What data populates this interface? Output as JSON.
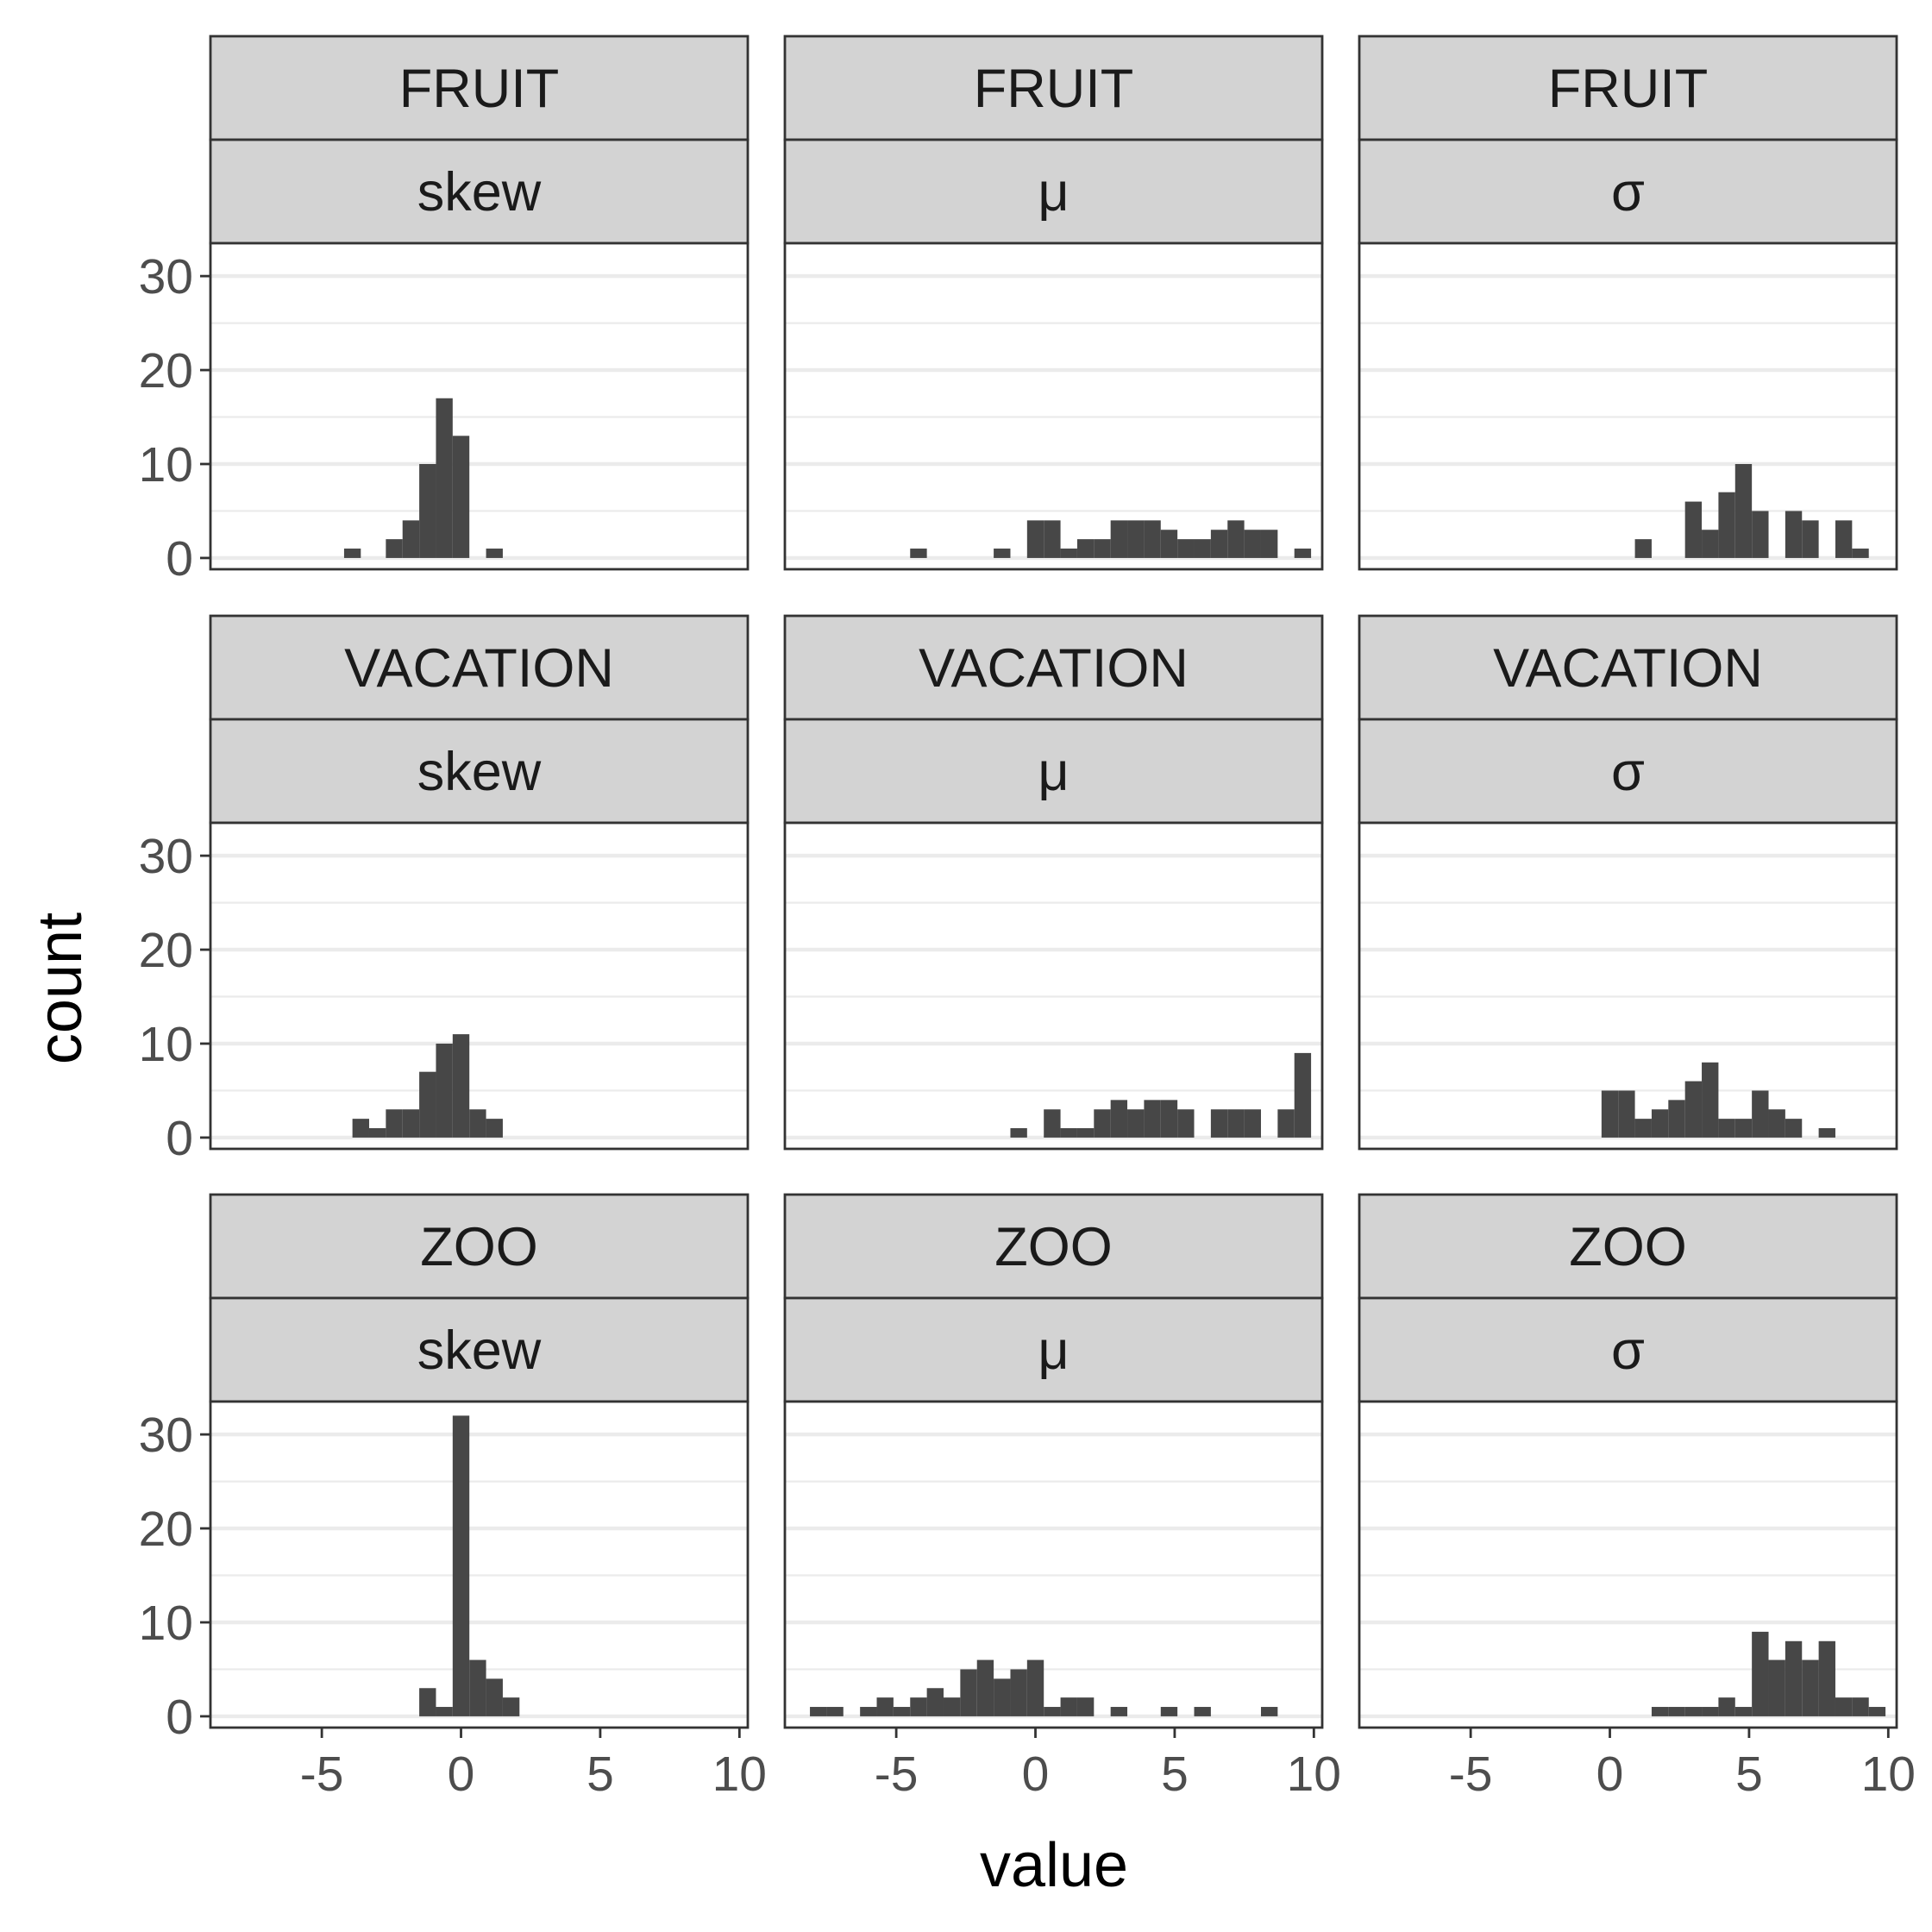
{
  "chart_data": {
    "type": "bar",
    "kind": "histogram-facets",
    "xlabel": "value",
    "ylabel": "count",
    "xlim": [
      -9.0,
      10.3
    ],
    "ylim": [
      -1.2,
      33.5
    ],
    "x_ticks": [
      "-5",
      "0",
      "5",
      "10"
    ],
    "x_tick_values": [
      -5,
      0,
      5,
      10
    ],
    "y_ticks": [
      "0",
      "10",
      "20",
      "30"
    ],
    "y_tick_values": [
      0,
      10,
      20,
      30
    ],
    "bin_width": 0.6,
    "grid": "horizontal only",
    "bar_color": "#474747",
    "strip_color": "#d3d3d3",
    "panels": [
      {
        "row": "FRUIT",
        "col": "skew",
        "bins": [
          [
            -4.2,
            1
          ],
          [
            -2.7,
            2
          ],
          [
            -2.1,
            4
          ],
          [
            -1.5,
            10
          ],
          [
            -0.9,
            17
          ],
          [
            -0.3,
            13
          ],
          [
            0.9,
            1
          ]
        ]
      },
      {
        "row": "FRUIT",
        "col": "μ",
        "bins": [
          [
            -4.5,
            1
          ],
          [
            -1.5,
            1
          ],
          [
            -0.3,
            4
          ],
          [
            0.3,
            4
          ],
          [
            0.9,
            1
          ],
          [
            1.5,
            2
          ],
          [
            2.1,
            2
          ],
          [
            2.7,
            4
          ],
          [
            3.3,
            4
          ],
          [
            3.9,
            4
          ],
          [
            4.5,
            3
          ],
          [
            5.1,
            2
          ],
          [
            5.7,
            2
          ],
          [
            6.3,
            3
          ],
          [
            6.9,
            4
          ],
          [
            7.5,
            3
          ],
          [
            8.1,
            3
          ],
          [
            9.3,
            1
          ]
        ]
      },
      {
        "row": "FRUIT",
        "col": "σ",
        "bins": [
          [
            0.9,
            2
          ],
          [
            2.7,
            6
          ],
          [
            3.3,
            3
          ],
          [
            3.9,
            7
          ],
          [
            4.5,
            10
          ],
          [
            5.1,
            5
          ],
          [
            6.3,
            5
          ],
          [
            6.9,
            4
          ],
          [
            8.1,
            4
          ],
          [
            8.7,
            1
          ]
        ]
      },
      {
        "row": "VACATION",
        "col": "skew",
        "bins": [
          [
            -3.9,
            2
          ],
          [
            -3.3,
            1
          ],
          [
            -2.7,
            3
          ],
          [
            -2.1,
            3
          ],
          [
            -1.5,
            7
          ],
          [
            -0.9,
            10
          ],
          [
            -0.3,
            11
          ],
          [
            0.3,
            3
          ],
          [
            0.9,
            2
          ]
        ]
      },
      {
        "row": "VACATION",
        "col": "μ",
        "bins": [
          [
            -0.9,
            1
          ],
          [
            0.3,
            3
          ],
          [
            0.9,
            1
          ],
          [
            1.5,
            1
          ],
          [
            2.1,
            3
          ],
          [
            2.7,
            4
          ],
          [
            3.3,
            3
          ],
          [
            3.9,
            4
          ],
          [
            4.5,
            4
          ],
          [
            5.1,
            3
          ],
          [
            6.3,
            3
          ],
          [
            6.9,
            3
          ],
          [
            7.5,
            3
          ],
          [
            8.7,
            3
          ],
          [
            9.3,
            9
          ]
        ]
      },
      {
        "row": "VACATION",
        "col": "σ",
        "bins": [
          [
            -0.3,
            5
          ],
          [
            0.3,
            5
          ],
          [
            0.9,
            2
          ],
          [
            1.5,
            3
          ],
          [
            2.1,
            4
          ],
          [
            2.7,
            6
          ],
          [
            3.3,
            8
          ],
          [
            3.9,
            2
          ],
          [
            4.5,
            2
          ],
          [
            5.1,
            5
          ],
          [
            5.7,
            3
          ],
          [
            6.3,
            2
          ],
          [
            7.5,
            1
          ]
        ]
      },
      {
        "row": "ZOO",
        "col": "skew",
        "bins": [
          [
            -1.5,
            3
          ],
          [
            -0.9,
            1
          ],
          [
            -0.3,
            32
          ],
          [
            0.3,
            6
          ],
          [
            0.9,
            4
          ],
          [
            1.5,
            2
          ]
        ]
      },
      {
        "row": "ZOO",
        "col": "μ",
        "bins": [
          [
            -8.1,
            1
          ],
          [
            -7.5,
            1
          ],
          [
            -6.3,
            1
          ],
          [
            -5.7,
            2
          ],
          [
            -5.1,
            1
          ],
          [
            -4.5,
            2
          ],
          [
            -3.9,
            3
          ],
          [
            -3.3,
            2
          ],
          [
            -2.7,
            5
          ],
          [
            -2.1,
            6
          ],
          [
            -1.5,
            4
          ],
          [
            -0.9,
            5
          ],
          [
            -0.3,
            6
          ],
          [
            0.3,
            1
          ],
          [
            0.9,
            2
          ],
          [
            1.5,
            2
          ],
          [
            2.7,
            1
          ],
          [
            4.5,
            1
          ],
          [
            5.7,
            1
          ],
          [
            8.1,
            1
          ]
        ]
      },
      {
        "row": "ZOO",
        "col": "σ",
        "bins": [
          [
            1.5,
            1
          ],
          [
            2.1,
            1
          ],
          [
            2.7,
            1
          ],
          [
            3.3,
            1
          ],
          [
            3.9,
            2
          ],
          [
            4.5,
            1
          ],
          [
            5.1,
            9
          ],
          [
            5.7,
            6
          ],
          [
            6.3,
            8
          ],
          [
            6.9,
            6
          ],
          [
            7.5,
            8
          ],
          [
            8.1,
            2
          ],
          [
            8.7,
            2
          ],
          [
            9.3,
            1
          ]
        ]
      }
    ]
  }
}
